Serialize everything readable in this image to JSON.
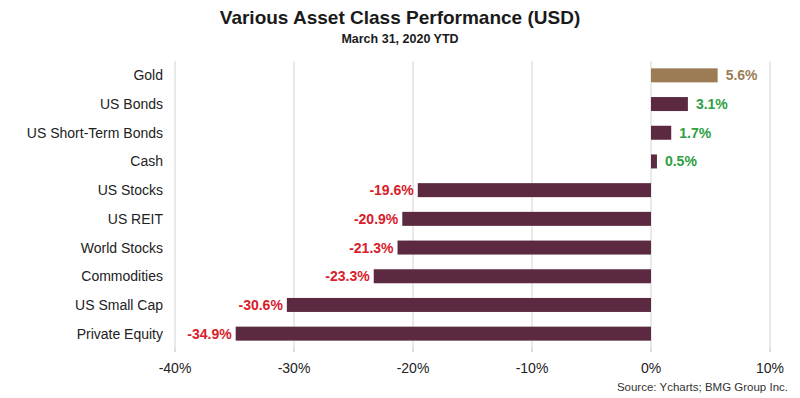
{
  "chart_data": {
    "type": "bar",
    "orientation": "horizontal",
    "title": "Various Asset Class Performance (USD)",
    "subtitle": "March 31, 2020 YTD",
    "source": "Source: Ycharts; BMG Group Inc.",
    "categories": [
      "Gold",
      "US Bonds",
      "US Short-Term Bonds",
      "Cash",
      "US Stocks",
      "US REIT",
      "World Stocks",
      "Commodities",
      "US Small Cap",
      "Private Equity"
    ],
    "values": [
      5.6,
      3.1,
      1.7,
      0.5,
      -19.6,
      -20.9,
      -21.3,
      -23.3,
      -30.6,
      -34.9
    ],
    "value_labels": [
      "5.6%",
      "3.1%",
      "1.7%",
      "0.5%",
      "-19.6%",
      "-20.9%",
      "-21.3%",
      "-23.3%",
      "-30.6%",
      "-34.9%"
    ],
    "colors": [
      "#9c7c55",
      "#5c2a40",
      "#5c2a40",
      "#5c2a40",
      "#5c2a40",
      "#5c2a40",
      "#5c2a40",
      "#5c2a40",
      "#5c2a40",
      "#5c2a40"
    ],
    "xlim": [
      -40,
      10
    ],
    "xticks": [
      {
        "value": -40,
        "label": "-40%"
      },
      {
        "value": -30,
        "label": "-30%"
      },
      {
        "value": -20,
        "label": "-20%"
      },
      {
        "value": -10,
        "label": "-10%"
      },
      {
        "value": 0,
        "label": "0%"
      },
      {
        "value": 10,
        "label": "10%"
      }
    ],
    "grid": true,
    "data_labels": true
  }
}
